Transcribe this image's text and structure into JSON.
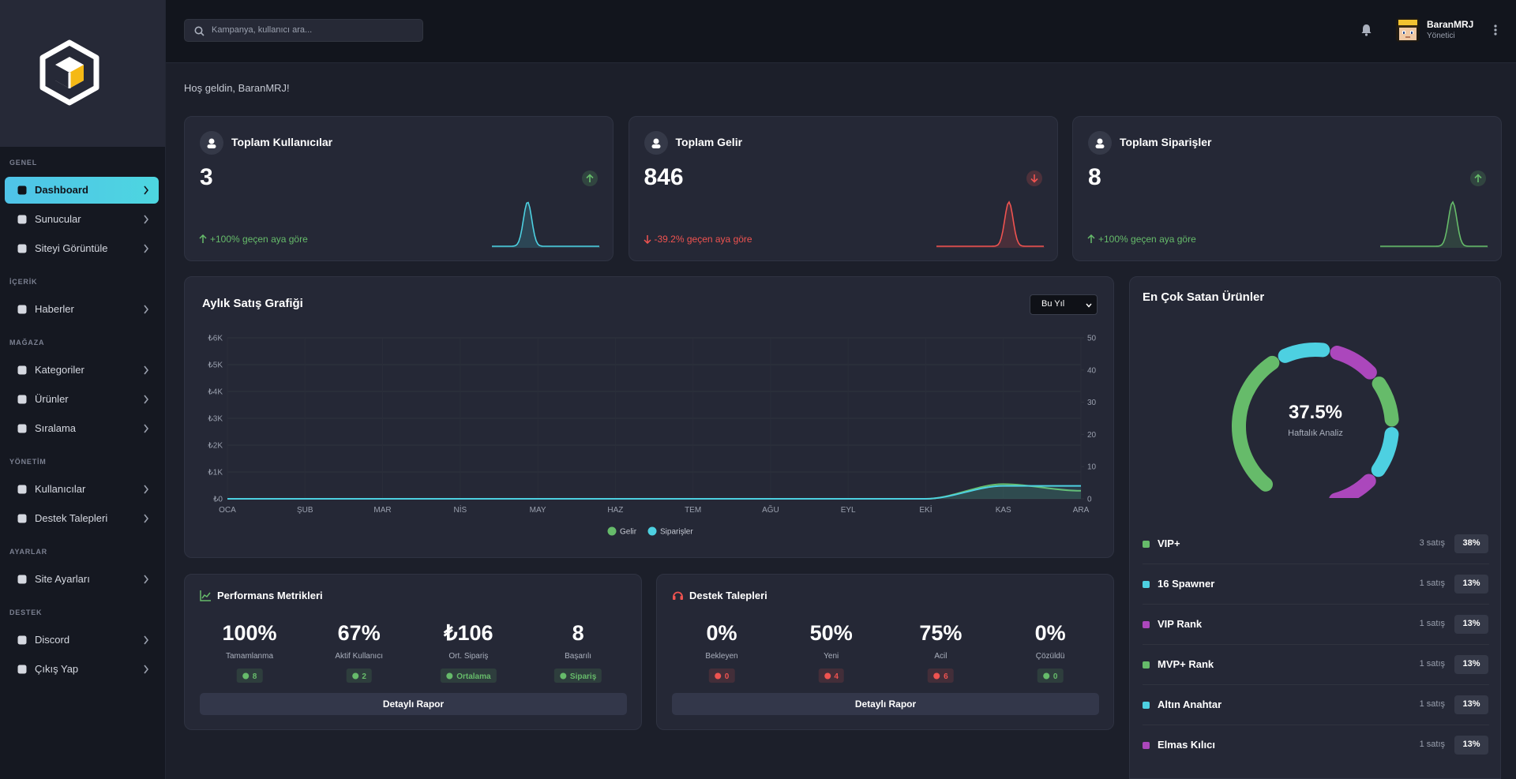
{
  "sidebar": {
    "active_item": "Dashboard",
    "sections": [
      {
        "title": "GENEL",
        "items": [
          "Dashboard",
          "Sunucular",
          "Siteyi Görüntüle"
        ]
      },
      {
        "title": "İÇERİK",
        "items": [
          "Haberler"
        ]
      },
      {
        "title": "MAĞAZA",
        "items": [
          "Kategoriler",
          "Ürünler",
          "Sıralama"
        ]
      },
      {
        "title": "YÖNETİM",
        "items": [
          "Kullanıcılar",
          "Destek Talepleri"
        ]
      },
      {
        "title": "AYARLAR",
        "items": [
          "Site Ayarları"
        ]
      },
      {
        "title": "DESTEK",
        "items": [
          "Discord",
          "Çıkış Yap"
        ]
      }
    ]
  },
  "topbar": {
    "search_placeholder": "Kampanya, kullanıcı ara...",
    "user_name": "BaranMRJ",
    "user_role": "Yönetici"
  },
  "welcome": "Hoş geldin, BaranMRJ!",
  "stats": [
    {
      "title": "Toplam Kullanıcılar",
      "value": 3,
      "change": "+100% geçen aya göre",
      "color": "#66bb6a",
      "spark_color": "#4dd0e1"
    },
    {
      "title": "Toplam Gelir",
      "value": 846,
      "change": "-39.2% geçen aya göre",
      "color": "#ef5350",
      "spark_color": "#ef5350"
    },
    {
      "title": "Toplam Siparişler",
      "value": 8,
      "change": "+100% geçen aya göre",
      "color": "#66bb6a",
      "spark_color": "#66bb6a"
    }
  ],
  "period_select": "Bu Yıl",
  "chart_data": [
    {
      "type": "line",
      "title": "Aylık Satış Grafiği",
      "categories": [
        "OCA",
        "ŞUB",
        "MAR",
        "NİS",
        "MAY",
        "HAZ",
        "TEM",
        "AĞU",
        "EYL",
        "EKİ",
        "KAS",
        "ARA"
      ],
      "series": [
        {
          "name": "Gelir",
          "color": "#66bb6a",
          "values": [
            0,
            0,
            0,
            0,
            0,
            0,
            0,
            0,
            0,
            0,
            546,
            300
          ]
        },
        {
          "name": "Siparişler",
          "color": "#4dd0e1",
          "axis": "y2",
          "values": [
            0,
            0,
            0,
            0,
            0,
            0,
            0,
            0,
            0,
            0,
            4,
            4
          ]
        }
      ],
      "ylim": [
        0,
        6000
      ],
      "yticks": [
        {
          "value": 0,
          "label": "₺0"
        },
        {
          "value": 1000,
          "label": "₺1K"
        },
        {
          "value": 2000,
          "label": "₺2K"
        },
        {
          "value": 3000,
          "label": "₺3K"
        },
        {
          "value": 4000,
          "label": "₺4K"
        },
        {
          "value": 5000,
          "label": "₺5K"
        },
        {
          "value": 6000,
          "label": "₺6K"
        }
      ],
      "y2lim": [
        0,
        50
      ],
      "y2ticks": [
        0,
        10,
        20,
        30,
        40,
        50
      ],
      "grid": true,
      "legend": "bottom"
    },
    {
      "type": "doughnut",
      "title": "En Çok Satan Ürünler",
      "center_value": "37.5%",
      "center_label": "Haftalık Analiz",
      "categories": [
        "VIP+",
        "16 Spawner",
        "VIP Rank",
        "MVP+ Rank",
        "Altın Anahtar",
        "Elmas Kılıcı"
      ],
      "values": [
        38,
        13,
        13,
        13,
        13,
        13
      ],
      "value_labels": [
        "38%",
        "13%",
        "13%",
        "13%",
        "13%",
        "13%"
      ],
      "sales_labels": [
        "3 satış",
        "1 satış",
        "1 satış",
        "1 satış",
        "1 satış",
        "1 satış"
      ],
      "colors": [
        "#66bb6a",
        "#4dd0e1",
        "#ab47bc",
        "#66bb6a",
        "#4dd0e1",
        "#ab47bc"
      ]
    }
  ],
  "performance": {
    "title": "Performans Metrikleri",
    "items": [
      {
        "value": "100%",
        "label": "Tamamlanma",
        "badge": "8",
        "badge_color": "#66bb6a"
      },
      {
        "value": "67%",
        "label": "Aktif Kullanıcı",
        "badge": "2",
        "badge_color": "#66bb6a"
      },
      {
        "value": "₺106",
        "label": "Ort. Sipariş",
        "badge": "Ortalama",
        "badge_color": "#66bb6a"
      },
      {
        "value": "8",
        "label": "Başarılı",
        "badge": "Sipariş",
        "badge_color": "#66bb6a"
      }
    ],
    "button": "Detaylı Rapor"
  },
  "support": {
    "title": "Destek Talepleri",
    "items": [
      {
        "value": "0%",
        "label": "Bekleyen",
        "badge": "0",
        "badge_color": "#ef5350"
      },
      {
        "value": "50%",
        "label": "Yeni",
        "badge": "4",
        "badge_color": "#ef5350"
      },
      {
        "value": "75%",
        "label": "Acil",
        "badge": "6",
        "badge_color": "#ef5350"
      },
      {
        "value": "0%",
        "label": "Çözüldü",
        "badge": "0",
        "badge_color": "#66bb6a"
      }
    ],
    "button": "Detaylı Rapor"
  }
}
